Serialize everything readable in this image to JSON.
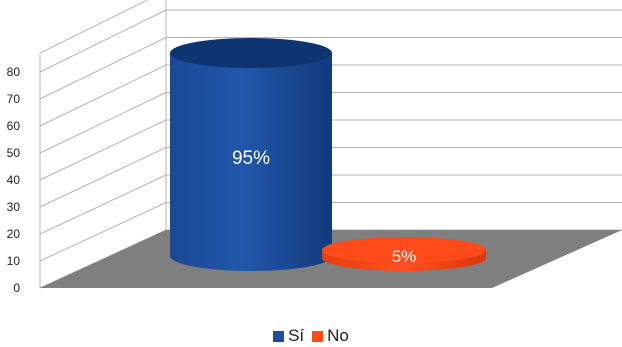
{
  "chart_data": {
    "type": "bar",
    "style": "3d-cylinder",
    "categories": [
      "Sí",
      "No"
    ],
    "values": [
      95,
      5
    ],
    "data_labels": [
      "95%",
      "5%"
    ],
    "colors": [
      "#1f4e9c",
      "#ff4b1a"
    ],
    "yticks": [
      "0",
      "10",
      "20",
      "30",
      "40",
      "50",
      "60",
      "70",
      "80"
    ],
    "ylim": [
      0,
      80
    ],
    "grid": true,
    "legend": {
      "position": "bottom",
      "items": [
        {
          "label": "Sí",
          "color": "#1f4e9c"
        },
        {
          "label": "No",
          "color": "#ff4b1a"
        }
      ]
    },
    "floor_color": "#7f7f7f"
  }
}
